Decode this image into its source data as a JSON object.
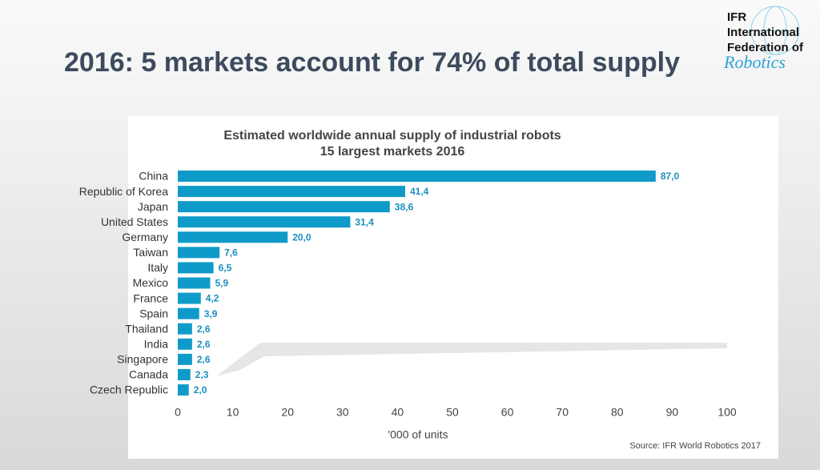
{
  "header": {
    "title": "2016: 5 markets account for 74% of total supply"
  },
  "logo": {
    "lines": [
      "IFR",
      "International",
      "Federation of"
    ],
    "script": "Robotics"
  },
  "chart_data": {
    "type": "hbar",
    "title": "Estimated worldwide annual supply of industrial robots",
    "subtitle": "15 largest markets 2016",
    "categories": [
      "China",
      "Republic of Korea",
      "Japan",
      "United States",
      "Germany",
      "Taiwan",
      "Italy",
      "Mexico",
      "France",
      "Spain",
      "Thailand",
      "India",
      "Singapore",
      "Canada",
      "Czech Republic"
    ],
    "values": [
      87.0,
      41.4,
      38.6,
      31.4,
      20.0,
      7.6,
      6.5,
      5.9,
      4.2,
      3.9,
      2.6,
      2.6,
      2.6,
      2.3,
      2.0
    ],
    "value_labels": [
      "87,0",
      "41,4",
      "38,6",
      "31,4",
      "20,0",
      "7,6",
      "6,5",
      "5,9",
      "4,2",
      "3,9",
      "2,6",
      "2,6",
      "2,6",
      "2,3",
      "2,0"
    ],
    "color": "#0f9bc9",
    "xlim": [
      0,
      100
    ],
    "xticks": [
      0,
      10,
      20,
      30,
      40,
      50,
      60,
      70,
      80,
      90,
      100
    ],
    "xlabel": "'000 of units",
    "grid": false,
    "source": "Source: IFR World Robotics 2017"
  }
}
